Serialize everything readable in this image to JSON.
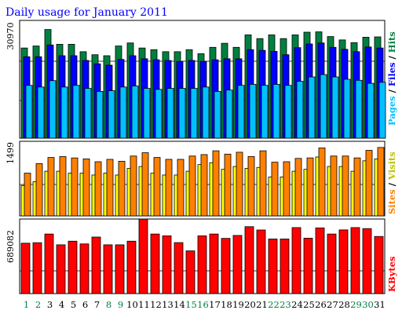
{
  "chart_data": [
    {
      "type": "bar",
      "title": "Daily usage for January 2011",
      "panel": "hits-files-pages",
      "y_tick_label": "30970",
      "ylim": [
        0,
        35000
      ],
      "grid": true,
      "legend_placement": "right",
      "categories": [
        "1",
        "2",
        "3",
        "4",
        "5",
        "6",
        "7",
        "8",
        "9",
        "10",
        "11",
        "12",
        "13",
        "14",
        "15",
        "16",
        "17",
        "18",
        "19",
        "20",
        "21",
        "22",
        "23",
        "24",
        "25",
        "26",
        "27",
        "28",
        "29",
        "30",
        "31"
      ],
      "weekend_days": [
        "1",
        "2",
        "8",
        "9",
        "15",
        "16",
        "22",
        "23",
        "29",
        "30"
      ],
      "series": [
        {
          "name": "Hits",
          "color": "#008040",
          "values": [
            26800,
            27400,
            32300,
            27900,
            27900,
            25700,
            24800,
            24500,
            27400,
            28300,
            26800,
            26300,
            25700,
            25700,
            26300,
            25100,
            27000,
            28200,
            27000,
            30700,
            29600,
            30700,
            29600,
            30700,
            31500,
            31600,
            30200,
            29200,
            28400,
            30000,
            30100
          ]
        },
        {
          "name": "Files",
          "color": "#0000ff",
          "values": [
            24200,
            24200,
            27700,
            24500,
            24500,
            23100,
            22100,
            21700,
            23400,
            24500,
            23600,
            23300,
            23100,
            22800,
            23100,
            22800,
            23300,
            23600,
            23600,
            26300,
            26100,
            25800,
            24800,
            26900,
            28000,
            28300,
            27000,
            26400,
            25700,
            27100,
            26800
          ]
        },
        {
          "name": "Pages",
          "color": "#00c0ff",
          "values": [
            15700,
            15200,
            17100,
            15200,
            15700,
            14800,
            13900,
            14100,
            15200,
            15500,
            14800,
            14500,
            14800,
            14800,
            14800,
            15200,
            13900,
            14300,
            15700,
            16000,
            15700,
            16000,
            15700,
            16900,
            18200,
            18900,
            18200,
            17500,
            17200,
            16300,
            16600
          ]
        }
      ]
    },
    {
      "type": "bar",
      "panel": "visits-sites",
      "y_tick_label": "1499",
      "ylim": [
        0,
        1570
      ],
      "grid": true,
      "legend_placement": "right",
      "categories": [
        "1",
        "2",
        "3",
        "4",
        "5",
        "6",
        "7",
        "8",
        "9",
        "10",
        "11",
        "12",
        "13",
        "14",
        "15",
        "16",
        "17",
        "18",
        "19",
        "20",
        "21",
        "22",
        "23",
        "24",
        "25",
        "26",
        "27",
        "28",
        "29",
        "30",
        "31"
      ],
      "series": [
        {
          "name": "Visits",
          "color": "#ffff00",
          "values": [
            640,
            720,
            940,
            940,
            900,
            900,
            860,
            900,
            860,
            1000,
            1040,
            900,
            860,
            860,
            940,
            1080,
            1120,
            980,
            1040,
            1000,
            1020,
            820,
            820,
            940,
            980,
            1240,
            1040,
            1040,
            940,
            1160,
            1200
          ]
        },
        {
          "name": "Sites",
          "color": "#ff8000",
          "values": [
            900,
            1100,
            1230,
            1250,
            1220,
            1200,
            1140,
            1190,
            1150,
            1260,
            1330,
            1230,
            1190,
            1190,
            1260,
            1290,
            1370,
            1300,
            1340,
            1250,
            1370,
            1130,
            1140,
            1210,
            1220,
            1430,
            1260,
            1260,
            1220,
            1380,
            1440
          ]
        }
      ]
    },
    {
      "type": "bar",
      "panel": "kbytes",
      "y_tick_label": "689082",
      "ylim": [
        0,
        740000
      ],
      "grid": true,
      "legend_placement": "right",
      "categories": [
        "1",
        "2",
        "3",
        "4",
        "5",
        "6",
        "7",
        "8",
        "9",
        "10",
        "11",
        "12",
        "13",
        "14",
        "15",
        "16",
        "17",
        "18",
        "19",
        "20",
        "21",
        "22",
        "23",
        "24",
        "25",
        "26",
        "27",
        "28",
        "29",
        "30",
        "31"
      ],
      "series": [
        {
          "name": "KBytes",
          "color": "#ff0000",
          "values": [
            500000,
            505000,
            591000,
            484000,
            520000,
            493000,
            561000,
            484000,
            484000,
            520000,
            760000,
            591000,
            573000,
            506000,
            424000,
            573000,
            591000,
            548000,
            577000,
            664000,
            631000,
            542000,
            542000,
            655000,
            550000,
            652000,
            591000,
            632000,
            655000,
            645000,
            567000
          ]
        }
      ]
    }
  ],
  "legend": {
    "upper": {
      "pages": "Pages",
      "files": "Files",
      "hits": "Hits",
      "sep": "/"
    },
    "middle": {
      "sites": "Sites",
      "visits": "Visits",
      "sep": "/"
    },
    "lower": {
      "kbytes": "KBytes"
    }
  },
  "colors": {
    "title": "#0000ff",
    "weekday_label": "#000000",
    "weekend_label": "#008040",
    "frame": "#000000",
    "background": "#ffffff"
  }
}
